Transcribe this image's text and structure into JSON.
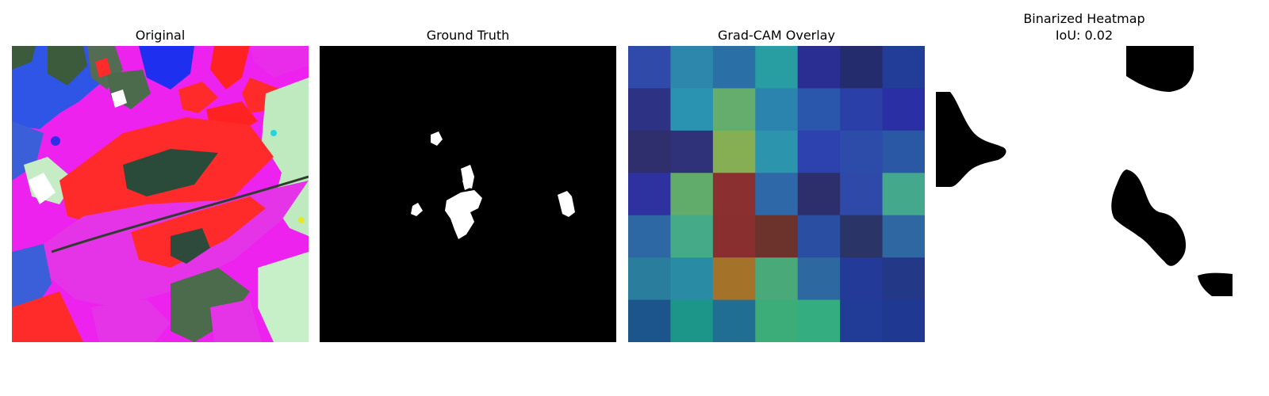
{
  "panels": [
    {
      "title": "Original"
    },
    {
      "title": "Ground Truth"
    },
    {
      "title": "Grad-CAM Overlay"
    },
    {
      "title": "Binarized Heatmap",
      "subtitle": "IoU: 0.02"
    }
  ],
  "iou": 0.02,
  "gradcam_grid": {
    "rows": 7,
    "cols": 7,
    "colors": [
      [
        "#2f4aa8",
        "#2d87ad",
        "#2b6fa7",
        "#289ea2",
        "#2a2e93",
        "#252c6e",
        "#223d98"
      ],
      [
        "#2e3284",
        "#2b93b2",
        "#64ad6c",
        "#2b84ae",
        "#2a56ac",
        "#2a40a8",
        "#2a2fa3"
      ],
      [
        "#2f2f6e",
        "#2f3278",
        "#86ae52",
        "#2d94ae",
        "#2d42ae",
        "#2d4ba8",
        "#2a58a4"
      ],
      [
        "#2d32a0",
        "#62ac6b",
        "#8a3030",
        "#2e68a8",
        "#2c2f6c",
        "#2e49a8",
        "#44a98c"
      ],
      [
        "#2d68a4",
        "#45aa87",
        "#8a2f2f",
        "#6c332c",
        "#2a4ea2",
        "#2a3466",
        "#2f67a2"
      ],
      [
        "#2a7d9c",
        "#2a8ca4",
        "#a5722a",
        "#4aa979",
        "#2d68a0",
        "#233a98",
        "#243888"
      ],
      [
        "#1c558c",
        "#1c9689",
        "#206f93",
        "#3cad78",
        "#34ae80",
        "#203c96",
        "#1f3891"
      ]
    ]
  }
}
